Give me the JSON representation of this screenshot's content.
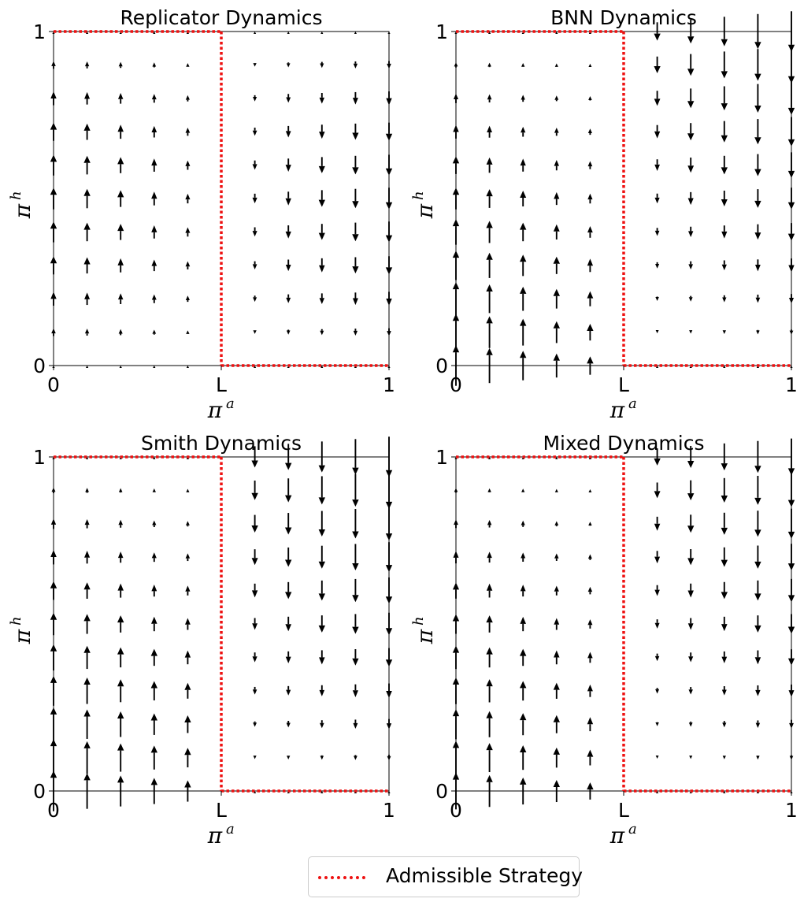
{
  "chart_data": [
    {
      "type": "quiver",
      "title": "Replicator Dynamics",
      "xlabel": "π",
      "xlabel_sup": "a",
      "ylabel": "π",
      "ylabel_sup": "h",
      "xlim": [
        0,
        1
      ],
      "ylim": [
        0,
        1
      ],
      "x_ticks": [
        "0",
        "L",
        "1"
      ],
      "y_ticks": [
        "0",
        "1"
      ],
      "L": 0.5,
      "admissible_boundary": "dotted red: x from 0 to L at y=1, vertical at x=L, x from L to 1 at y=0",
      "field_model": "replicator",
      "field_gain": 1.0
    },
    {
      "type": "quiver",
      "title": "BNN Dynamics",
      "xlabel": "π",
      "xlabel_sup": "a",
      "ylabel": "π",
      "ylabel_sup": "h",
      "xlim": [
        0,
        1
      ],
      "ylim": [
        0,
        1
      ],
      "x_ticks": [
        "0",
        "L",
        "1"
      ],
      "y_ticks": [
        "0",
        "1"
      ],
      "L": 0.5,
      "field_model": "bnn",
      "field_gain": 1.0
    },
    {
      "type": "quiver",
      "title": "Smith Dynamics",
      "xlabel": "π",
      "xlabel_sup": "a",
      "ylabel": "π",
      "ylabel_sup": "h",
      "xlim": [
        0,
        1
      ],
      "ylim": [
        0,
        1
      ],
      "x_ticks": [
        "0",
        "L",
        "1"
      ],
      "y_ticks": [
        "0",
        "1"
      ],
      "L": 0.5,
      "field_model": "smith",
      "field_gain": 1.0
    },
    {
      "type": "quiver",
      "title": "Mixed Dynamics",
      "xlabel": "π",
      "xlabel_sup": "a",
      "ylabel": "π",
      "ylabel_sup": "h",
      "xlim": [
        0,
        1
      ],
      "ylim": [
        0,
        1
      ],
      "x_ticks": [
        "0",
        "L",
        "1"
      ],
      "y_ticks": [
        "0",
        "1"
      ],
      "L": 0.5,
      "field_model": "mixed",
      "field_gain": 1.0
    }
  ],
  "legend": {
    "label": "Admissible Strategy",
    "color": "#ee1111",
    "style": "dotted"
  },
  "colors": {
    "boundary": "#ee1111",
    "arrows": "#000000"
  }
}
